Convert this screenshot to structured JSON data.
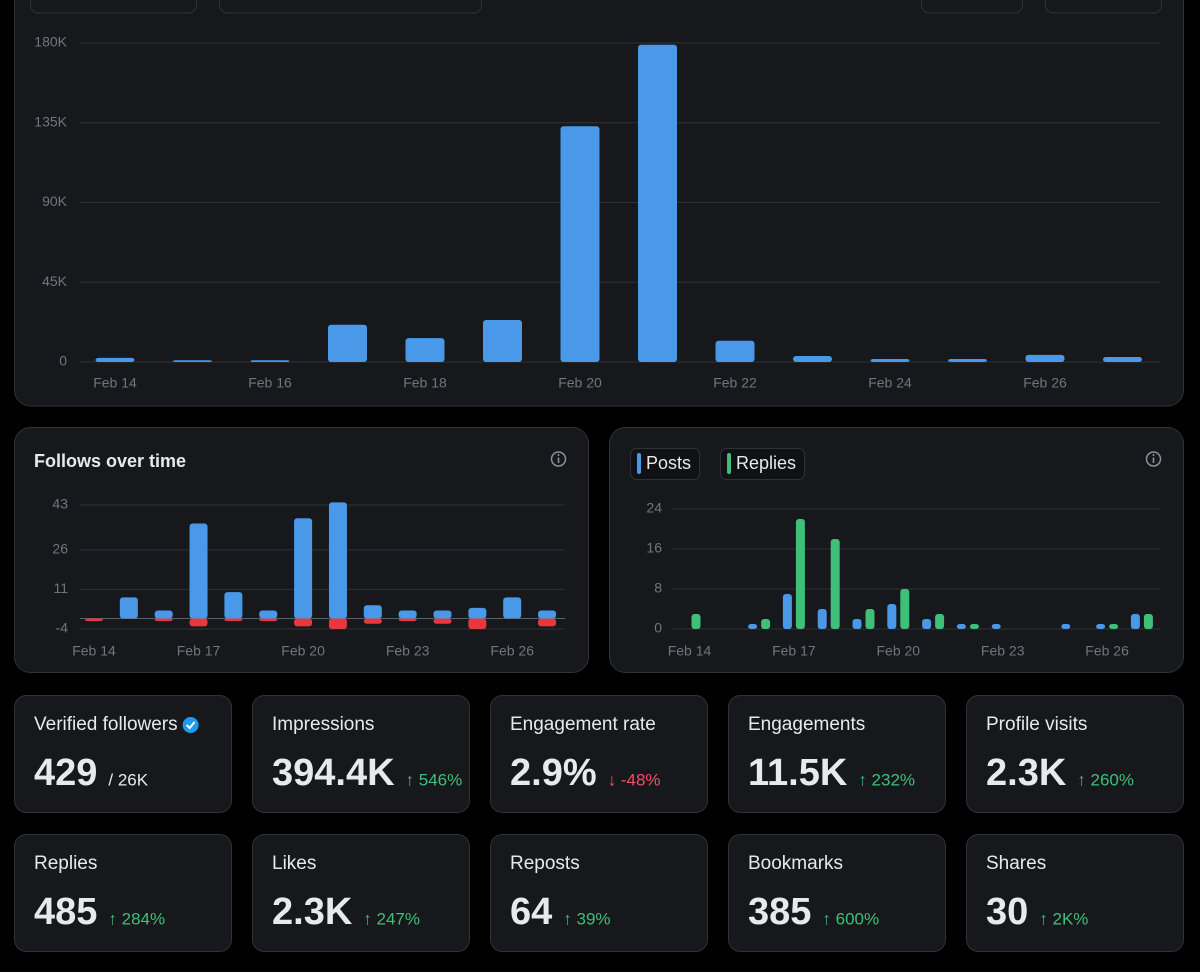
{
  "chart_data": [
    {
      "type": "bar",
      "categories": [
        "Feb 14",
        null,
        "Feb 16",
        null,
        "Feb 18",
        null,
        "Feb 20",
        null,
        "Feb 22",
        null,
        "Feb 24",
        null,
        "Feb 26",
        null
      ],
      "series": [
        {
          "color": "#4a99e9",
          "values": [
            2300,
            1000,
            1000,
            21000,
            13500,
            23700,
            133000,
            179000,
            12000,
            3400,
            1700,
            1700,
            4000,
            2800
          ]
        }
      ],
      "ylim": [
        0,
        180000
      ],
      "yticks": [
        0,
        {
          "value": 45000,
          "label": "45K"
        },
        {
          "value": 90000,
          "label": "90K"
        },
        {
          "value": 135000,
          "label": "135K"
        },
        {
          "value": 180000,
          "label": "180K"
        }
      ],
      "grid": true
    },
    {
      "type": "bar",
      "title": "Follows over time",
      "categories": [
        "Feb 14",
        null,
        null,
        "Feb 17",
        null,
        null,
        "Feb 20",
        null,
        null,
        "Feb 23",
        null,
        null,
        "Feb 26",
        null
      ],
      "series": [
        {
          "color": "#4a99e9",
          "values": [
            0,
            8,
            3,
            36,
            10,
            3,
            38,
            44,
            5,
            3,
            3,
            4,
            8,
            3
          ]
        },
        {
          "color": "#e5393f",
          "values": [
            -1,
            0,
            -1,
            -3,
            -1,
            -1,
            -3,
            -4,
            -2,
            -1,
            -2,
            -4,
            0,
            -3
          ]
        }
      ],
      "ylim": [
        -4,
        43
      ],
      "yticks": [
        -4,
        11,
        26,
        43
      ],
      "grid": true
    },
    {
      "type": "bar",
      "categories": [
        "Feb 14",
        null,
        null,
        "Feb 17",
        null,
        null,
        "Feb 20",
        null,
        null,
        "Feb 23",
        null,
        null,
        "Feb 26",
        null
      ],
      "series": [
        {
          "name": "Posts",
          "color": "#4a99e9",
          "values": [
            0,
            0,
            1,
            7,
            4,
            2,
            5,
            2,
            1,
            1,
            0,
            1,
            1,
            3
          ]
        },
        {
          "name": "Replies",
          "color": "#3fbf78",
          "values": [
            3,
            0,
            2,
            22,
            18,
            4,
            8,
            3,
            1,
            0,
            0,
            0,
            1,
            3
          ]
        }
      ],
      "ylim": [
        0,
        24
      ],
      "yticks": [
        0,
        8,
        16,
        24
      ],
      "grid": true
    }
  ],
  "cards": [
    {
      "title": "Verified followers",
      "value": "429",
      "suffix": "/ 26K"
    },
    {
      "title": "Impressions",
      "value": "394.4K",
      "change": "↑ 546%",
      "color": "#3fbf78"
    },
    {
      "title": "Engagement rate",
      "value": "2.9%",
      "change": "↓ -48%",
      "color": "#f4515e"
    },
    {
      "title": "Engagements",
      "value": "11.5K",
      "change": "↑ 232%",
      "color": "#3fbf78"
    },
    {
      "title": "Profile visits",
      "value": "2.3K",
      "change": "↑ 260%",
      "color": "#3fbf78"
    },
    {
      "title": "Replies",
      "value": "485",
      "change": "↑ 284%",
      "color": "#3fbf78"
    },
    {
      "title": "Likes",
      "value": "2.3K",
      "change": "↑ 247%",
      "color": "#3fbf78"
    },
    {
      "title": "Reposts",
      "value": "64",
      "change": "↑ 39%",
      "color": "#3fbf78"
    },
    {
      "title": "Bookmarks",
      "value": "385",
      "change": "↑ 600%",
      "color": "#3fbf78"
    },
    {
      "title": "Shares",
      "value": "30",
      "change": "↑ 2K%",
      "color": "#3fbf78"
    }
  ]
}
